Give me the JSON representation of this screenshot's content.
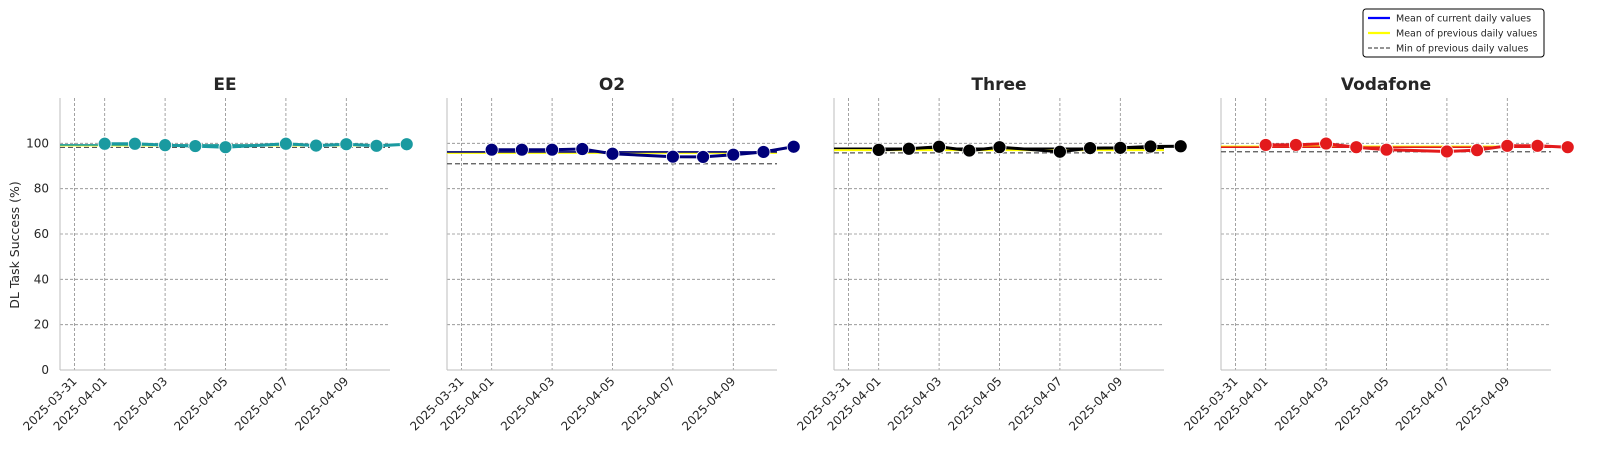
{
  "chart_data": {
    "type": "line",
    "ylabel": "DL Task Success (%)",
    "ylim": [
      0,
      120
    ],
    "yticks": [
      0,
      20,
      40,
      60,
      80,
      100
    ],
    "xtick_labels": [
      "2025-03-31",
      "2025-04-01",
      "2025-04-03",
      "2025-04-05",
      "2025-04-07",
      "2025-04-09"
    ],
    "grid": true,
    "legend": {
      "placement": "top-right",
      "entries": [
        {
          "label": "Mean of current daily values",
          "color": "#0000ff",
          "style": "solid"
        },
        {
          "label": "Mean of previous daily values",
          "color": "#ffff00",
          "style": "solid"
        },
        {
          "label": "Min of previous daily values",
          "color": "#555555",
          "style": "dashed"
        }
      ]
    },
    "dates": [
      "2025-04-01",
      "2025-04-02",
      "2025-04-03",
      "2025-04-04",
      "2025-04-05",
      "2025-04-06",
      "2025-04-07",
      "2025-04-08",
      "2025-04-09",
      "2025-04-10",
      "2025-04-11"
    ],
    "panels": [
      {
        "title": "EE",
        "color": "#1a9aa0",
        "values": [
          99.8,
          99.8,
          99.2,
          98.8,
          98.3,
          null,
          99.8,
          99.0,
          99.6,
          98.9,
          99.6
        ],
        "mean_current": 99.3,
        "mean_previous": 99.1,
        "min_previous": 98.2
      },
      {
        "title": "O2",
        "color": "#00007a",
        "values": [
          97.2,
          97.2,
          97.2,
          97.5,
          95.4,
          null,
          94.1,
          94.0,
          95.0,
          96.2,
          98.5
        ],
        "mean_current": 96.2,
        "mean_previous": 95.8,
        "min_previous": 91.0
      },
      {
        "title": "Three",
        "color": "#000000",
        "values": [
          97.1,
          97.6,
          98.5,
          96.8,
          98.3,
          null,
          96.3,
          97.9,
          98.0,
          98.6,
          98.7
        ],
        "mean_current": 97.8,
        "mean_previous": 97.0,
        "min_previous": 95.8
      },
      {
        "title": "Vodafone",
        "color": "#e31a1c",
        "values": [
          99.3,
          99.3,
          99.9,
          98.3,
          97.2,
          null,
          96.4,
          97.0,
          98.9,
          98.9,
          98.3
        ],
        "mean_current": 98.3,
        "mean_previous": 98.6,
        "min_previous": 96.3
      }
    ]
  }
}
